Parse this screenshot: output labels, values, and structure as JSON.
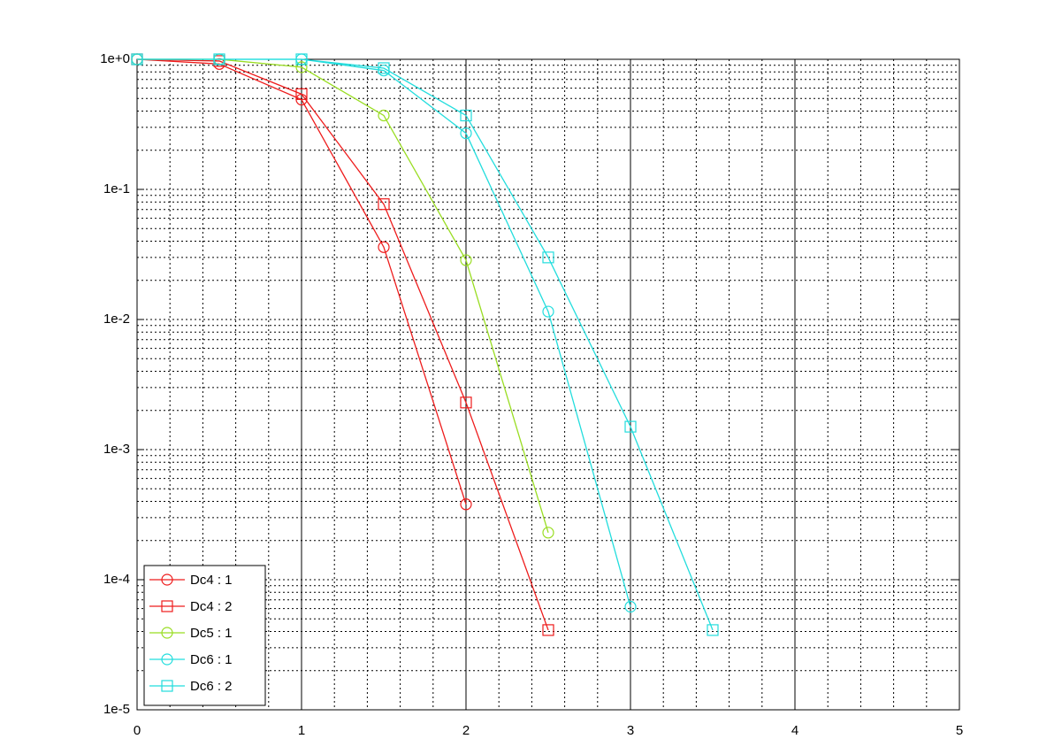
{
  "chart_data": {
    "type": "line",
    "y_scale": "log",
    "grid": true,
    "legend_position": "lower left",
    "x": [
      0,
      0.5,
      1,
      1.5,
      2,
      2.5,
      3,
      3.5
    ],
    "xlim": [
      0,
      5
    ],
    "xticks": [
      0,
      1,
      2,
      3,
      4,
      5
    ],
    "ylim": [
      1e-05,
      1
    ],
    "yticks": [
      {
        "value": 1e-05,
        "label": "1e-5"
      },
      {
        "value": 0.0001,
        "label": "1e-4"
      },
      {
        "value": 0.001,
        "label": "1e-3"
      },
      {
        "value": 0.01,
        "label": "1e-2"
      },
      {
        "value": 0.1,
        "label": "1e-1"
      },
      {
        "value": 1,
        "label": "1e+0"
      }
    ],
    "series": [
      {
        "name": "Dc4 : 1",
        "color": "#ee1c1c",
        "marker": "circle",
        "values": [
          1,
          0.92,
          0.49,
          0.036,
          0.00038,
          null,
          null,
          null
        ]
      },
      {
        "name": "Dc4 : 2",
        "color": "#ee1c1c",
        "marker": "square",
        "values": [
          1,
          0.97,
          0.54,
          0.077,
          0.0023,
          4.1e-05,
          null,
          null
        ]
      },
      {
        "name": "Dc5 : 1",
        "color": "#99dd22",
        "marker": "circle",
        "values": [
          1,
          1,
          0.87,
          0.37,
          0.0286,
          0.00023,
          null,
          null
        ]
      },
      {
        "name": "Dc6 : 1",
        "color": "#22dddd",
        "marker": "circle",
        "values": [
          1,
          1,
          1,
          0.82,
          0.27,
          0.0115,
          6.2e-05,
          null
        ]
      },
      {
        "name": "Dc6 : 2",
        "color": "#22dddd",
        "marker": "square",
        "values": [
          1,
          1,
          1,
          0.855,
          0.37,
          0.03,
          0.0015,
          4.1e-05
        ]
      }
    ]
  }
}
